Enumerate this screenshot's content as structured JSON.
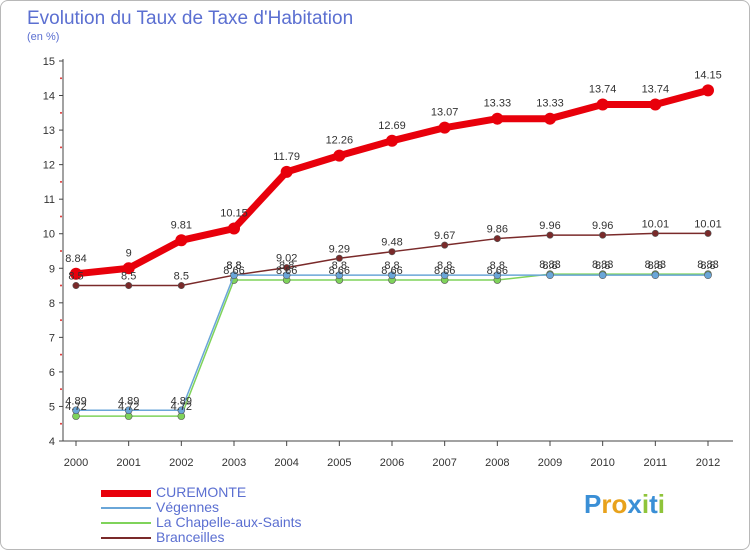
{
  "title": "Evolution du Taux de Taxe d'Habitation",
  "subtitle": "(en %)",
  "logo": {
    "text": "Proxiti",
    "letter_colors": [
      "#3a8fd6",
      "#e8a21c",
      "#e8a21c",
      "#3a8fd6",
      "#8fc43a",
      "#3a8fd6",
      "#8fc43a"
    ]
  },
  "chart_data": {
    "type": "line",
    "x": [
      "2000",
      "2001",
      "2002",
      "2003",
      "2004",
      "2005",
      "2006",
      "2007",
      "2008",
      "2009",
      "2010",
      "2011",
      "2012"
    ],
    "ylim": [
      4,
      15
    ],
    "yticks": [
      "4",
      "5",
      "6",
      "7",
      "8",
      "9",
      "10",
      "11",
      "12",
      "13",
      "14",
      "15"
    ],
    "grid": false,
    "legend_position": "bottom-left",
    "series": [
      {
        "name": "CUREMONTE",
        "color": "#e8000b",
        "values": [
          8.84,
          9,
          9.81,
          10.15,
          11.79,
          12.26,
          12.69,
          13.07,
          13.33,
          13.33,
          13.74,
          13.74,
          14.15
        ],
        "labels": [
          "8.84",
          "9",
          "9.81",
          "10.15",
          "11.79",
          "12.26",
          "12.69",
          "13.07",
          "13.33",
          "13.33",
          "13.74",
          "13.74",
          "14.15"
        ]
      },
      {
        "name": "Végennes",
        "color": "#6aa6d8",
        "values": [
          4.89,
          4.89,
          4.89,
          8.8,
          8.8,
          8.8,
          8.8,
          8.8,
          8.8,
          8.8,
          8.8,
          8.8,
          8.8
        ],
        "labels": [
          "4.89",
          "4.89",
          "4.89",
          "8.8",
          "8.8",
          "8.8",
          "8.8",
          "8.8",
          "8.8",
          "8.8",
          "8.8",
          "8.8",
          "8.8"
        ]
      },
      {
        "name": "La Chapelle-aux-Saints",
        "color": "#7fd35a",
        "values": [
          4.72,
          4.72,
          4.72,
          8.66,
          8.66,
          8.66,
          8.66,
          8.66,
          8.66,
          8.83,
          8.83,
          8.83,
          8.83
        ],
        "labels": [
          "4.72",
          "4.72",
          "4.72",
          "8.66",
          "8.66",
          "8.66",
          "8.66",
          "8.66",
          "8.66",
          "8.83",
          "8.83",
          "8.83",
          "8.83"
        ]
      },
      {
        "name": "Branceilles",
        "color": "#7a2a2a",
        "values": [
          8.5,
          8.5,
          8.5,
          8.8,
          9.02,
          9.29,
          9.48,
          9.67,
          9.86,
          9.96,
          9.96,
          10.01,
          10.01
        ],
        "labels": [
          "8.5",
          "8.5",
          "8.5",
          "8.8",
          "9.02",
          "9.29",
          "9.48",
          "9.67",
          "9.86",
          "9.96",
          "9.96",
          "10.01",
          "10.01"
        ]
      }
    ]
  }
}
